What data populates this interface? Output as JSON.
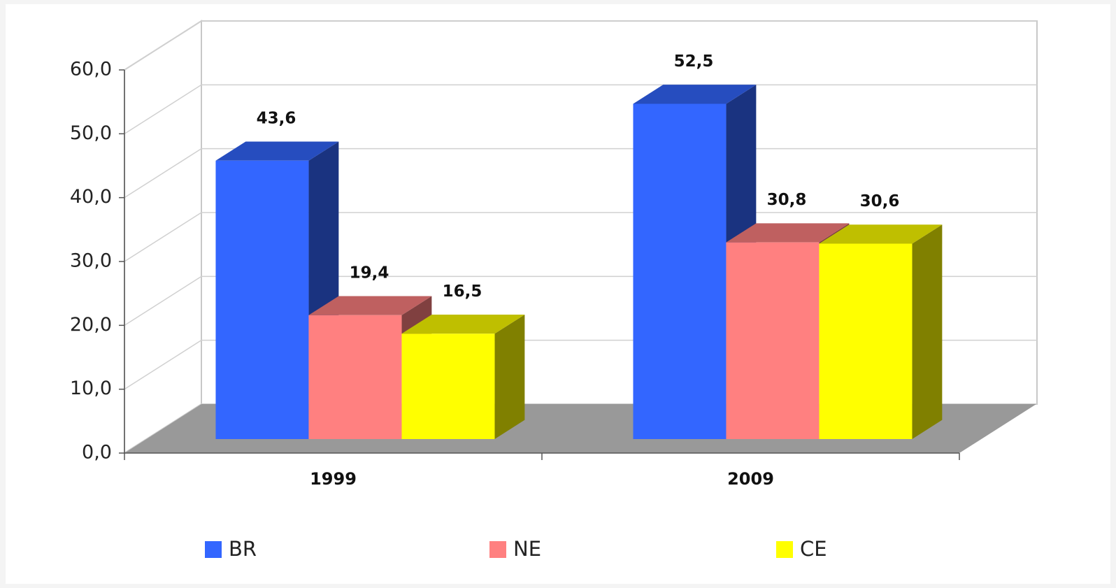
{
  "chart_data": {
    "type": "bar3d",
    "categories": [
      "1999",
      "2009"
    ],
    "series": [
      {
        "name": "BR",
        "color": "#3366ff",
        "values": [
          43.6,
          52.5
        ],
        "value_labels": [
          "43,6",
          "52,5"
        ]
      },
      {
        "name": "NE",
        "color": "#ff8080",
        "values": [
          19.4,
          30.8
        ],
        "value_labels": [
          "19,4",
          "30,8"
        ]
      },
      {
        "name": "CE",
        "color": "#ffff00",
        "values": [
          16.5,
          30.6
        ],
        "value_labels": [
          "16,5",
          "30,6"
        ]
      }
    ],
    "ylim": [
      0,
      60
    ],
    "yticks": [
      {
        "value": 0,
        "label": "0,0"
      },
      {
        "value": 10,
        "label": "10,0"
      },
      {
        "value": 20,
        "label": "20,0"
      },
      {
        "value": 30,
        "label": "30,0"
      },
      {
        "value": 40,
        "label": "40,0"
      },
      {
        "value": 50,
        "label": "50,0"
      },
      {
        "value": 60,
        "label": "60,0"
      }
    ],
    "grid": true,
    "legend": "bottom"
  }
}
